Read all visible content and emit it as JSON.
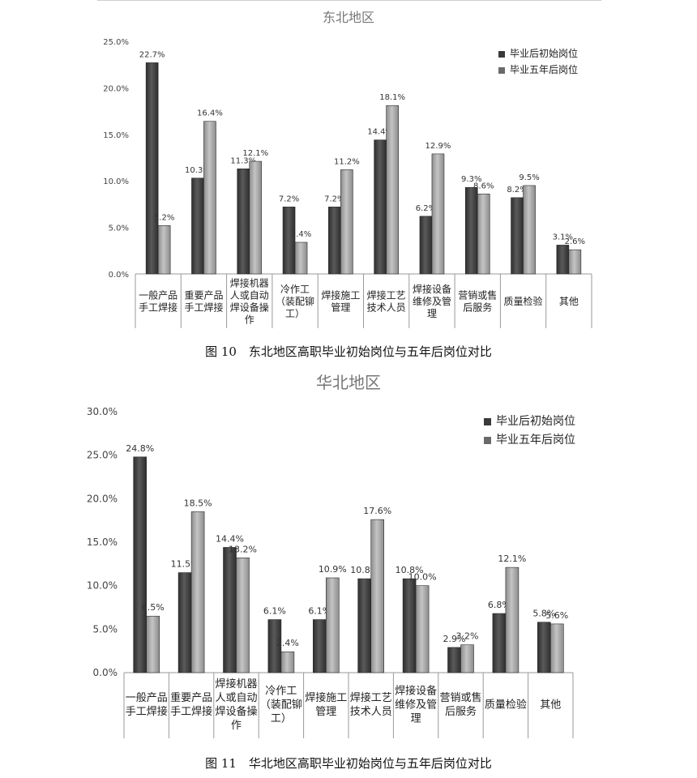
{
  "chart_data": [
    {
      "type": "bar",
      "title": "东北地区",
      "categories": [
        [
          "一般产品",
          "手工焊接"
        ],
        [
          "重要产品",
          "手工焊接"
        ],
        [
          "焊接机器",
          "人或自动",
          "焊设备操",
          "作"
        ],
        [
          "冷作工",
          "（装配铆",
          "工）"
        ],
        [
          "焊接施工",
          "管理"
        ],
        [
          "焊接工艺",
          "技术人员"
        ],
        [
          "焊接设备",
          "维修及管",
          "理"
        ],
        [
          "营销或售",
          "后服务"
        ],
        [
          "质量检验"
        ],
        [
          "其他"
        ]
      ],
      "series": [
        {
          "name": "毕业后初始岗位",
          "values": [
            22.7,
            10.3,
            11.3,
            7.2,
            7.2,
            14.4,
            6.2,
            9.3,
            8.2,
            3.1
          ]
        },
        {
          "name": "毕业五年后岗位",
          "values": [
            5.2,
            16.4,
            12.1,
            3.4,
            11.2,
            18.1,
            12.9,
            8.6,
            9.5,
            2.6
          ]
        }
      ],
      "value_labels": [
        [
          "22.7%",
          "10.3%",
          "11.3%",
          "7.2%",
          "7.2%",
          "14.4%",
          "6.2%",
          "9.3%",
          "8.2%",
          "3.1%"
        ],
        [
          "5.2%",
          "16.4%",
          "12.1%",
          "3.4%",
          "11.2%",
          "18.1%",
          "12.9%",
          "8.6%",
          "9.5%",
          "2.6%"
        ]
      ],
      "ylim": [
        0,
        25
      ],
      "yticks": [
        "0.0%",
        "5.0%",
        "10.0%",
        "15.0%",
        "20.0%",
        "25.0%"
      ],
      "grid": false,
      "legend": "top-right",
      "xlabel": "",
      "ylabel": ""
    },
    {
      "type": "bar",
      "title": "华北地区",
      "categories": [
        [
          "一般产品",
          "手工焊接"
        ],
        [
          "重要产品",
          "手工焊接"
        ],
        [
          "焊接机器",
          "人或自动",
          "焊设备操",
          "作"
        ],
        [
          "冷作工",
          "（装配铆",
          "工）"
        ],
        [
          "焊接施工",
          "管理"
        ],
        [
          "焊接工艺",
          "技术人员"
        ],
        [
          "焊接设备",
          "维修及管",
          "理"
        ],
        [
          "营销或售",
          "后服务"
        ],
        [
          "质量检验"
        ],
        [
          "其他"
        ]
      ],
      "series": [
        {
          "name": "毕业后初始岗位",
          "values": [
            24.8,
            11.5,
            14.4,
            6.1,
            6.1,
            10.8,
            10.8,
            2.9,
            6.8,
            5.8
          ]
        },
        {
          "name": "毕业五年后岗位",
          "values": [
            6.5,
            18.5,
            13.2,
            2.4,
            10.9,
            17.6,
            10.0,
            3.2,
            12.1,
            5.6
          ]
        }
      ],
      "value_labels": [
        [
          "24.8%",
          "11.5%",
          "14.4%",
          "6.1%",
          "6.1%",
          "10.8%",
          "10.8%",
          "2.9%",
          "6.8%",
          "5.8%"
        ],
        [
          "6.5%",
          "18.5%",
          "13.2%",
          "2.4%",
          "10.9%",
          "17.6%",
          "10.0%",
          "3.2%",
          "12.1%",
          "5.6%"
        ]
      ],
      "ylim": [
        0,
        30
      ],
      "yticks": [
        "0.0%",
        "5.0%",
        "10.0%",
        "15.0%",
        "20.0%",
        "25.0%",
        "30.0%"
      ],
      "grid": false,
      "legend": "top-right",
      "xlabel": "",
      "ylabel": ""
    }
  ],
  "captions": {
    "fig10": "图 10　东北地区高职毕业初始岗位与五年后岗位对比",
    "fig11": "图 11　华北地区高职毕业初始岗位与五年后岗位对比"
  },
  "colors": {
    "bar_dark": "#3c3c3c",
    "bar_light": "#a8a8a8",
    "axis": "#9a9a9a",
    "title": "#777777"
  }
}
